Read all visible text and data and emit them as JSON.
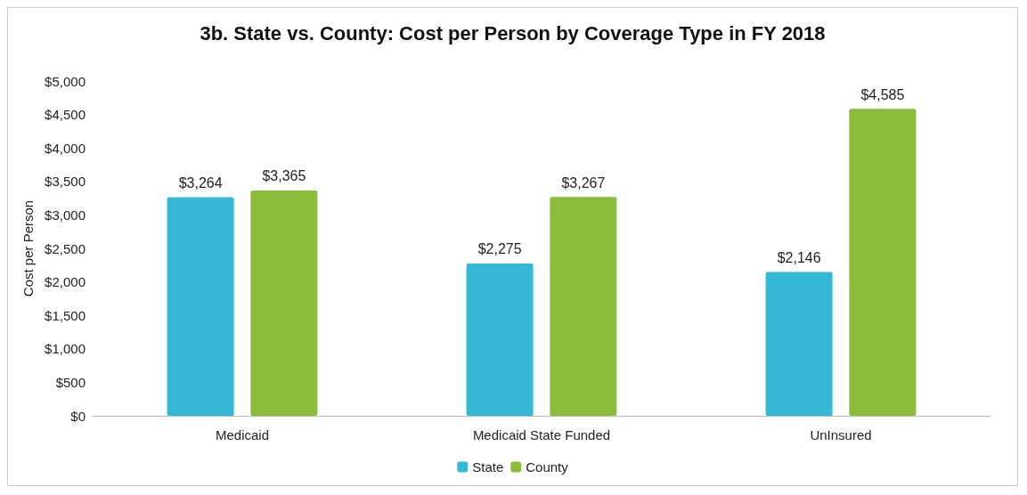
{
  "chart_data": {
    "type": "bar",
    "title": "3b. State vs. County: Cost per Person by Coverage Type in FY 2018",
    "ylabel": "Cost per Person",
    "categories": [
      "Medicaid",
      "Medicaid State Funded",
      "UnInsured"
    ],
    "series": [
      {
        "name": "State",
        "color": "#35b8d6",
        "values": [
          3264,
          2275,
          2146
        ],
        "value_labels": [
          "$3,264",
          "$2,275",
          "$2,146"
        ]
      },
      {
        "name": "County",
        "color": "#8cbc3c",
        "values": [
          3365,
          3267,
          4585
        ],
        "value_labels": [
          "$3,365",
          "$3,267",
          "$4,585"
        ]
      }
    ],
    "ylim": [
      0,
      5000
    ],
    "yticks": [
      {
        "value": 0,
        "label": "$0"
      },
      {
        "value": 500,
        "label": "$500"
      },
      {
        "value": 1000,
        "label": "$1,000"
      },
      {
        "value": 1500,
        "label": "$1,500"
      },
      {
        "value": 2000,
        "label": "$2,000"
      },
      {
        "value": 2500,
        "label": "$2,500"
      },
      {
        "value": 3000,
        "label": "$3,000"
      },
      {
        "value": 3500,
        "label": "$3,500"
      },
      {
        "value": 4000,
        "label": "$4,000"
      },
      {
        "value": 4500,
        "label": "$4,500"
      },
      {
        "value": 5000,
        "label": "$5,000"
      }
    ],
    "grid": false,
    "legend": "bottom"
  }
}
